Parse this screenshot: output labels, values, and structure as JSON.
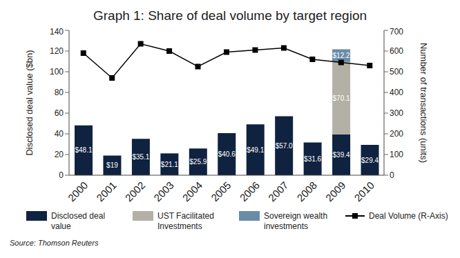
{
  "chart_data": {
    "type": "bar",
    "title": "Graph 1: Share of deal volume by target region",
    "categories": [
      "2000",
      "2001",
      "2002",
      "2003",
      "2004",
      "2005",
      "2006",
      "2007",
      "2008",
      "2009",
      "2010"
    ],
    "series": [
      {
        "name": "Disclosed deal value",
        "color": "#0f2240",
        "values": [
          48.1,
          19,
          35.1,
          21.1,
          25.9,
          40.6,
          49.1,
          57.0,
          31.6,
          39.4,
          29.4
        ],
        "value_labels": [
          "$48.1",
          "$19",
          "$35.1",
          "$21.1",
          "$25.9",
          "$40.6",
          "$49.1",
          "$57.0",
          "$31.6",
          "$39.4",
          "$29.4"
        ]
      },
      {
        "name": "UST Facilitated Investments",
        "color": "#b3b1a6",
        "values": [
          null,
          null,
          null,
          null,
          null,
          null,
          null,
          null,
          null,
          70.1,
          null
        ],
        "value_labels": [
          null,
          null,
          null,
          null,
          null,
          null,
          null,
          null,
          null,
          "$70.1",
          null
        ]
      },
      {
        "name": "Sovereign wealth investments",
        "color": "#6a8ca8",
        "values": [
          null,
          null,
          null,
          null,
          null,
          null,
          null,
          null,
          null,
          12.2,
          null
        ],
        "value_labels": [
          null,
          null,
          null,
          null,
          null,
          null,
          null,
          null,
          null,
          "$12.2",
          null
        ]
      },
      {
        "name": "Deal Volume (R-Axis)",
        "type": "line",
        "axis": "y2",
        "color": "#000000",
        "marker": "square",
        "values": [
          590,
          470,
          635,
          600,
          525,
          595,
          605,
          615,
          560,
          545,
          530
        ]
      }
    ],
    "stacked": true,
    "data_labels": true,
    "grid": false,
    "legend": "bottom",
    "ylabel": "Disclosed deal value ($bn)",
    "y2label": "Number of transactions (units)",
    "ylim": [
      0,
      140
    ],
    "yticks": [
      0,
      20,
      40,
      60,
      80,
      100,
      120,
      140
    ],
    "y2lim": [
      0,
      700
    ],
    "y2ticks": [
      0,
      100,
      200,
      300,
      400,
      500,
      600,
      700
    ],
    "source": "Source: Thomson Reuters"
  }
}
